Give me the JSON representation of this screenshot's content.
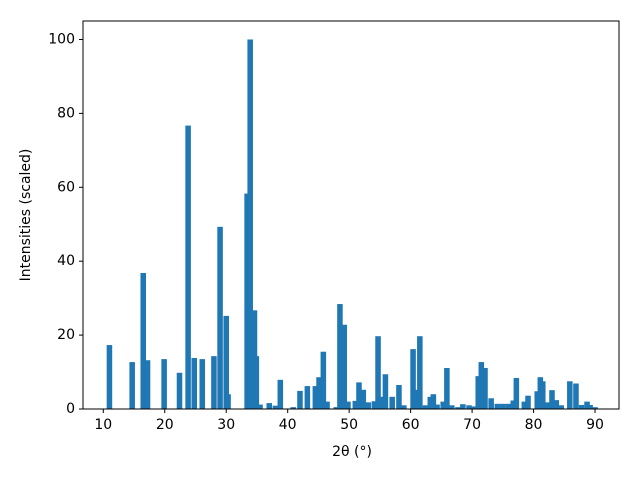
{
  "chart_data": {
    "type": "bar",
    "xlabel": "2θ (°)",
    "ylabel": "Intensities (scaled)",
    "color": "#1f77b4",
    "x": [
      11.0,
      14.7,
      16.5,
      17.2,
      19.9,
      22.4,
      23.8,
      24.8,
      26.1,
      28.0,
      29.0,
      30.0,
      30.3,
      33.4,
      33.9,
      34.6,
      34.9,
      35.5,
      37.0,
      38.0,
      38.8,
      40.9,
      42.0,
      43.2,
      44.5,
      45.1,
      45.8,
      46.4,
      47.9,
      48.5,
      49.2,
      49.8,
      51.0,
      51.6,
      52.3,
      53.1,
      54.1,
      54.7,
      55.2,
      55.9,
      57.0,
      58.1,
      58.9,
      60.4,
      60.9,
      61.5,
      62.4,
      63.2,
      63.7,
      64.3,
      65.3,
      65.9,
      66.7,
      67.7,
      68.5,
      69.5,
      70.2,
      71.0,
      71.5,
      72.1,
      73.1,
      74.1,
      75.0,
      75.9,
      76.7,
      77.2,
      78.5,
      79.1,
      80.6,
      81.1,
      81.5,
      82.2,
      83.0,
      83.7,
      84.5,
      85.9,
      86.9,
      87.8,
      88.7,
      89.2,
      90.0
    ],
    "values": [
      17.3,
      12.7,
      36.8,
      13.2,
      13.5,
      9.8,
      76.7,
      13.8,
      13.5,
      14.3,
      49.3,
      25.2,
      4.0,
      58.3,
      100,
      26.7,
      14.3,
      1.2,
      1.6,
      0.9,
      7.9,
      0.5,
      4.9,
      6.2,
      6.2,
      8.6,
      15.5,
      2.0,
      0.5,
      28.4,
      22.8,
      2.0,
      2.2,
      7.2,
      5.2,
      1.8,
      2.1,
      19.7,
      3.3,
      9.4,
      3.3,
      6.5,
      1.0,
      16.2,
      5.2,
      19.7,
      1.0,
      3.3,
      4.0,
      1.2,
      2.0,
      11.1,
      1.0,
      0.5,
      1.3,
      1.0,
      0.7,
      8.9,
      12.7,
      11.1,
      2.9,
      1.4,
      1.4,
      1.4,
      2.3,
      8.4,
      2.0,
      3.6,
      4.8,
      8.6,
      7.5,
      1.8,
      5.1,
      2.4,
      1.0,
      7.5,
      6.9,
      1.1,
      2.0,
      1.1,
      0.5
    ],
    "xlim": [
      6.7,
      93.9
    ],
    "ylim": [
      0,
      105
    ],
    "xticks": [
      10,
      20,
      30,
      40,
      50,
      60,
      70,
      80,
      90
    ],
    "yticks": [
      0,
      20,
      40,
      60,
      80,
      100
    ],
    "grid": false
  }
}
